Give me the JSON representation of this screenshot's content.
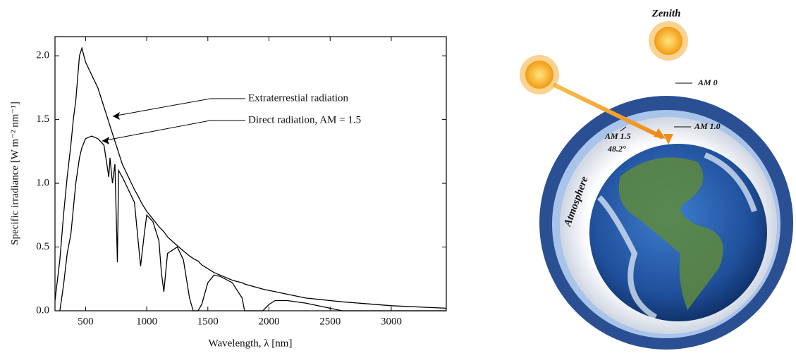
{
  "chart_data": {
    "type": "line",
    "xlabel": "Wavelength, λ [nm]",
    "ylabel": "Specific irradiance [W m⁻² nm⁻¹]",
    "x": [
      250,
      290,
      320,
      350,
      380,
      400,
      420,
      450,
      470,
      500,
      550,
      600,
      650,
      690,
      700,
      720,
      740,
      760,
      770,
      800,
      850,
      900,
      930,
      950,
      980,
      1000,
      1050,
      1100,
      1120,
      1140,
      1170,
      1250,
      1300,
      1350,
      1380,
      1420,
      1450,
      1500,
      1550,
      1600,
      1700,
      1780,
      1800,
      1950,
      2000,
      2050,
      2150,
      2300,
      2400,
      2500,
      2600,
      3000,
      3450
    ],
    "series": [
      {
        "name": "Extraterrestial radiation",
        "color": "#000000",
        "values": [
          0.08,
          0.4,
          0.75,
          1.05,
          1.3,
          1.5,
          1.65,
          2.0,
          2.06,
          1.95,
          1.85,
          1.75,
          1.6,
          1.48,
          1.45,
          1.39,
          1.33,
          1.27,
          1.24,
          1.15,
          1.05,
          0.95,
          0.9,
          0.86,
          0.81,
          0.78,
          0.72,
          0.66,
          0.64,
          0.62,
          0.58,
          0.51,
          0.47,
          0.43,
          0.41,
          0.39,
          0.36,
          0.33,
          0.3,
          0.28,
          0.24,
          0.22,
          0.21,
          0.17,
          0.16,
          0.15,
          0.13,
          0.1,
          0.09,
          0.08,
          0.07,
          0.04,
          0.02
        ]
      },
      {
        "name": "Direct radiation, AM = 1.5",
        "color": "#000000",
        "values": [
          null,
          0,
          0.2,
          0.45,
          0.6,
          0.8,
          1.0,
          1.2,
          1.28,
          1.35,
          1.37,
          1.35,
          1.3,
          1.05,
          1.2,
          1.0,
          1.15,
          0.38,
          1.1,
          1.05,
          0.95,
          0.85,
          0.55,
          0.35,
          0.6,
          0.75,
          0.7,
          0.55,
          0.3,
          0.15,
          0.45,
          0.5,
          0.4,
          0.1,
          0,
          0,
          0.05,
          0.22,
          0.28,
          0.27,
          0.22,
          0.1,
          0,
          0,
          0.05,
          0.08,
          0.08,
          0.06,
          0.04,
          0.02,
          0,
          0,
          0
        ]
      }
    ],
    "xlim": [
      250,
      3450
    ],
    "ylim": [
      0,
      2.15
    ],
    "xticks": [
      500,
      1000,
      1500,
      2000,
      2500,
      3000
    ],
    "yticks": [
      {
        "value": 0,
        "label": "0.0"
      },
      {
        "value": 0.5,
        "label": "0.5"
      },
      {
        "value": 1,
        "label": "1.0"
      },
      {
        "value": 1.5,
        "label": "1.5"
      },
      {
        "value": 2,
        "label": "2.0"
      }
    ],
    "grid": false
  },
  "diagram": {
    "zenith": "Zenith",
    "am0": "AM 0",
    "am10": "AM 1.0",
    "am15": "AM 1.5",
    "angle": "48.2°",
    "atmosphere": "Atmosphere"
  }
}
